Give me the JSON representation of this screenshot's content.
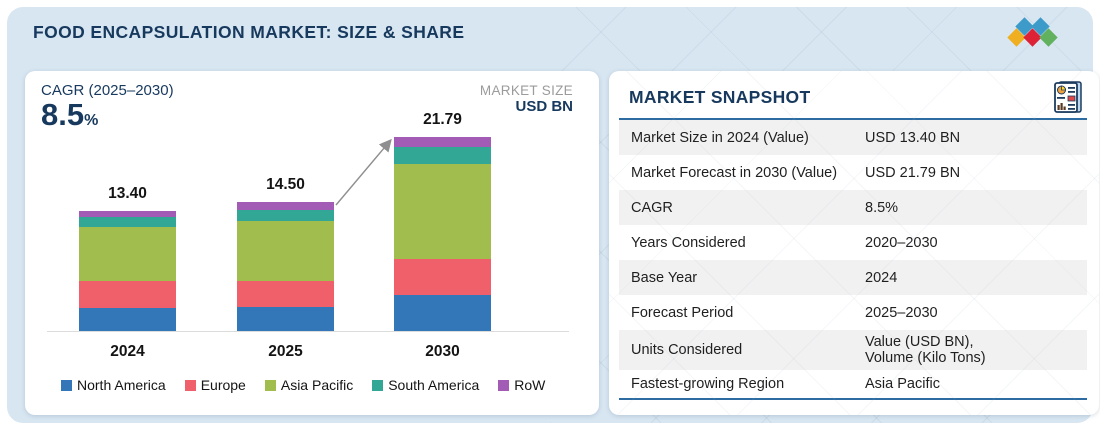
{
  "header": {
    "title": "FOOD ENCAPSULATION MARKET: SIZE & SHARE",
    "logo_colors": {
      "blue": "#3d9bc9",
      "yellow": "#efaf21",
      "red": "#dd2236",
      "green": "#62b15e"
    }
  },
  "chart_panel": {
    "cagr_label": "CAGR (2025–2030)",
    "cagr_value": "8.5",
    "cagr_unit": "%",
    "market_size_label": "MARKET SIZE",
    "market_size_unit": "USD BN"
  },
  "chart_data": {
    "type": "bar",
    "stacked": true,
    "categories": [
      "2024",
      "2025",
      "2030"
    ],
    "totals": [
      13.4,
      14.5,
      21.79
    ],
    "total_labels": [
      "13.40",
      "14.50",
      "21.79"
    ],
    "series": [
      {
        "name": "North America",
        "color": "#3377b8",
        "values": [
          2.55,
          2.72,
          4.1
        ]
      },
      {
        "name": "Europe",
        "color": "#f0606a",
        "values": [
          3.0,
          2.9,
          4.01
        ]
      },
      {
        "name": "Asia Pacific",
        "color": "#a0bd4e",
        "values": [
          6.11,
          6.76,
          10.67
        ]
      },
      {
        "name": "South America",
        "color": "#33a795",
        "values": [
          1.1,
          1.24,
          1.88
        ]
      },
      {
        "name": "RoW",
        "color": "#a35cb5",
        "values": [
          0.64,
          0.88,
          1.13
        ]
      }
    ],
    "ylabel": "MARKET SIZE USD BN",
    "legend_position": "bottom",
    "annotation": "growth arrow from top of 2025 bar to top of 2030 bar",
    "arrow_color": "#8f8f8f"
  },
  "snapshot": {
    "title": "MARKET SNAPSHOT",
    "rows": [
      {
        "label": "Market Size in 2024 (Value)",
        "value": "USD 13.40  BN"
      },
      {
        "label": "Market Forecast in 2030 (Value)",
        "value": "USD 21.79 BN"
      },
      {
        "label": "CAGR",
        "value": "8.5%"
      },
      {
        "label": "Years Considered",
        "value": "2020–2030"
      },
      {
        "label": "Base Year",
        "value": "2024"
      },
      {
        "label": "Forecast Period",
        "value": "2025–2030"
      },
      {
        "label": "Units Considered",
        "value": "Value (USD BN),\nVolume (Kilo Tons)"
      },
      {
        "label": "Fastest-growing Region",
        "value": "Asia Pacific"
      }
    ]
  }
}
